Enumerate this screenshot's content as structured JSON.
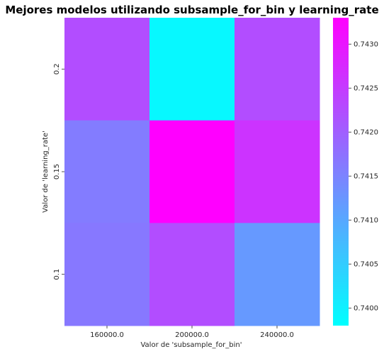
{
  "chart_data": {
    "type": "heatmap",
    "title": "Mejores modelos utilizando subsample_for_bin y learning_rate",
    "xlabel": "Valor de 'subsample_for_bin'",
    "ylabel": "Valor de 'learning_rate'",
    "x_categories": [
      "160000.0",
      "200000.0",
      "240000.0"
    ],
    "y_categories": [
      "0.2",
      "0.15",
      "0.1"
    ],
    "values": [
      [
        0.74225,
        0.7399,
        0.74225
      ],
      [
        0.7416,
        0.7433,
        0.7426
      ],
      [
        0.74165,
        0.74225,
        0.7412
      ]
    ],
    "colormap": "cool",
    "colormap_colors": [
      "#00ffff",
      "#ff00ff"
    ],
    "colorbar": {
      "vmin": 0.7398,
      "vmax": 0.7433,
      "tick_labels": [
        "0.7400",
        "0.7405",
        "0.7410",
        "0.7415",
        "0.7420",
        "0.7425",
        "0.7430"
      ],
      "tick_values": [
        0.74,
        0.7405,
        0.741,
        0.7415,
        0.742,
        0.7425,
        0.743
      ]
    }
  }
}
